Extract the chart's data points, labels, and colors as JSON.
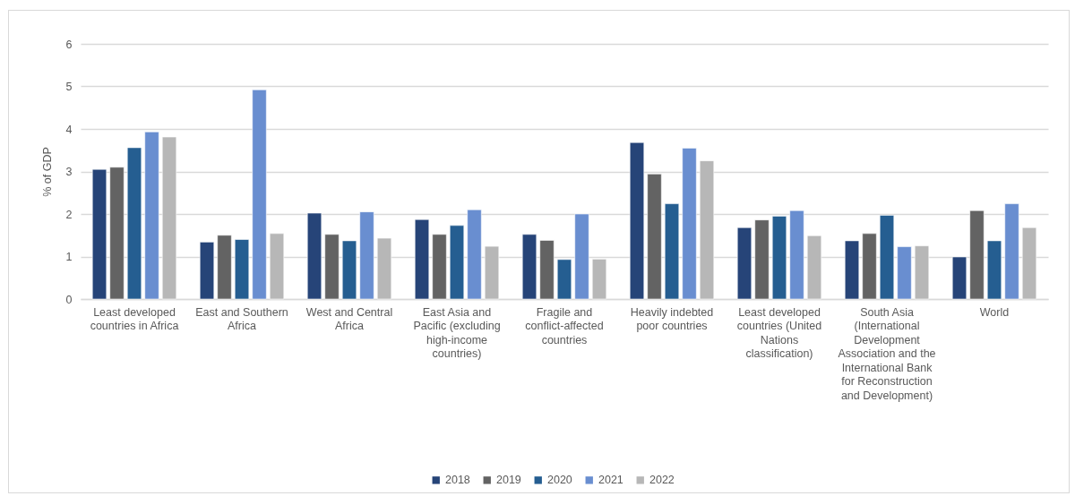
{
  "chart_data": {
    "type": "bar",
    "categories": [
      "Least developed countries in Africa",
      "East and Southern Africa",
      "West and Central Africa",
      "East Asia and Pacific (excluding high-income countries)",
      "Fragile and conflict-affected countries",
      "Heavily indebted poor countries",
      "Least developed countries (United Nations classification)",
      "South Asia (International Development Association and the International Bank for Reconstruction and Development)",
      "World"
    ],
    "series": [
      {
        "name": "2018",
        "color": "#264478",
        "values": [
          3.05,
          1.34,
          2.02,
          1.87,
          1.52,
          3.68,
          1.68,
          1.37,
          0.99
        ]
      },
      {
        "name": "2019",
        "color": "#636363",
        "values": [
          3.1,
          1.5,
          1.52,
          1.52,
          1.38,
          2.94,
          1.86,
          1.54,
          2.08
        ]
      },
      {
        "name": "2020",
        "color": "#255e91",
        "values": [
          3.56,
          1.4,
          1.37,
          1.73,
          0.93,
          2.24,
          1.95,
          1.97,
          1.37
        ]
      },
      {
        "name": "2021",
        "color": "#698ed0",
        "values": [
          3.93,
          4.92,
          2.05,
          2.1,
          2.0,
          3.55,
          2.08,
          1.23,
          2.24
        ]
      },
      {
        "name": "2022",
        "color": "#b7b7b7",
        "values": [
          3.81,
          1.54,
          1.43,
          1.24,
          0.94,
          3.25,
          1.49,
          1.25,
          1.68
        ]
      }
    ],
    "ylabel": "% of GDP",
    "ylim": [
      0,
      6
    ],
    "yticks": [
      0,
      1,
      2,
      3,
      4,
      5,
      6
    ],
    "grid": "y",
    "legend": "bottom"
  }
}
